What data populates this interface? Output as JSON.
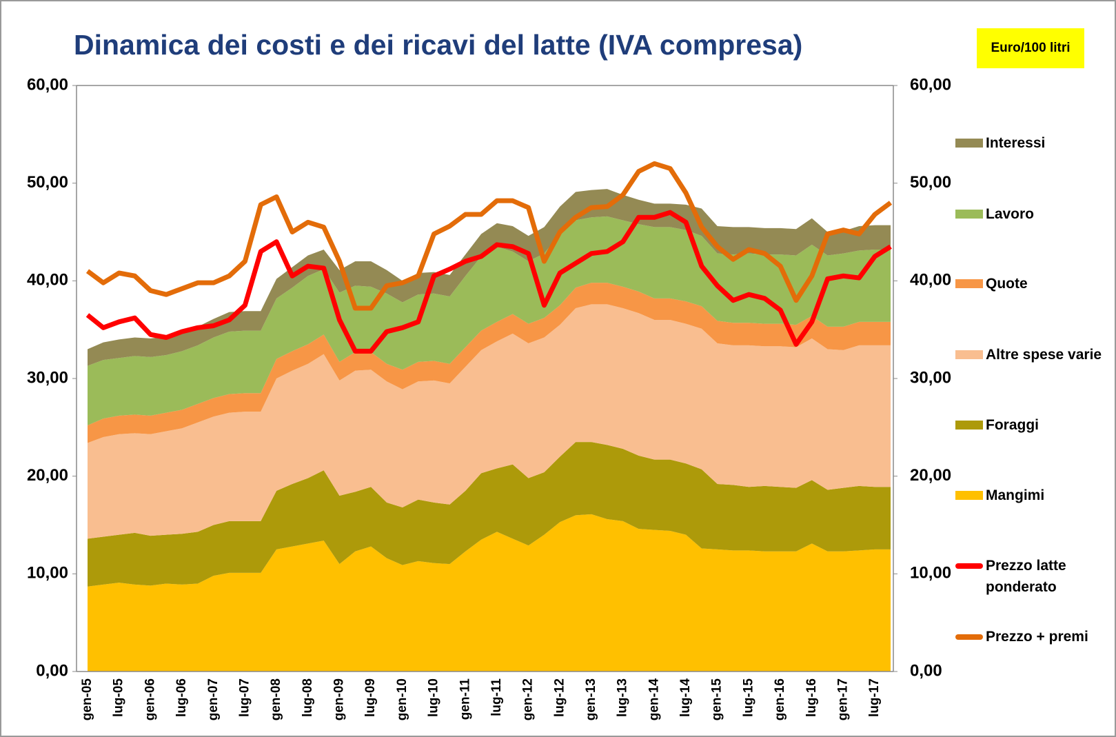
{
  "chart_data": {
    "type": "area",
    "title": "Dinamica dei costi e dei ricavi del latte (IVA compresa)",
    "unit_label": "Euro/100 litri",
    "categories": [
      "gen-05",
      null,
      "lug-05",
      null,
      "gen-06",
      null,
      "lug-06",
      null,
      "gen-07",
      null,
      "lug-07",
      null,
      "gen-08",
      null,
      "lug-08",
      null,
      "gen-09",
      null,
      "lug-09",
      null,
      "gen-10",
      null,
      "lug-10",
      null,
      "gen-11",
      null,
      "lug-11",
      null,
      "gen-12",
      null,
      "lug-12",
      null,
      "gen-13",
      null,
      "lug-13",
      null,
      "gen-14",
      null,
      "lug-14",
      null,
      "gen-15",
      null,
      "lug-15",
      null,
      "gen-16",
      null,
      "lug-16",
      null,
      "gen-17",
      null,
      "lug-17",
      null
    ],
    "ylim": [
      0,
      60
    ],
    "yticks": [
      {
        "value": 0,
        "label": "0,00"
      },
      {
        "value": 10,
        "label": "10,00"
      },
      {
        "value": 20,
        "label": "20,00"
      },
      {
        "value": 30,
        "label": "30,00"
      },
      {
        "value": 40,
        "label": "40,00"
      },
      {
        "value": 50,
        "label": "50,00"
      },
      {
        "value": 60,
        "label": "60,00"
      }
    ],
    "y2lim": [
      0,
      60
    ],
    "y2ticks": [
      {
        "value": 0,
        "label": "0,00"
      },
      {
        "value": 10,
        "label": "10,00"
      },
      {
        "value": 20,
        "label": "20,00"
      },
      {
        "value": 30,
        "label": "30,00"
      },
      {
        "value": 40,
        "label": "40,00"
      },
      {
        "value": 50,
        "label": "50,00"
      },
      {
        "value": 60,
        "label": "60,00"
      }
    ],
    "grid": false,
    "series": [
      {
        "name": "Mangimi",
        "type": "area",
        "color": "#ffc000",
        "values": [
          8.7,
          8.9,
          9.1,
          8.9,
          8.8,
          9.0,
          8.9,
          9.0,
          9.8,
          10.1,
          10.1,
          10.1,
          12.5,
          12.8,
          13.1,
          13.4,
          11.0,
          12.3,
          12.8,
          11.6,
          10.9,
          11.3,
          11.1,
          11.0,
          12.3,
          13.5,
          14.3,
          13.6,
          12.9,
          14.0,
          15.3,
          16.0,
          16.1,
          15.6,
          15.4,
          14.6,
          14.5,
          14.4,
          14.0,
          12.6,
          12.5,
          12.4,
          12.4,
          12.3,
          12.3,
          12.3,
          13.1,
          12.3,
          12.3,
          12.4,
          12.5,
          12.5
        ]
      },
      {
        "name": "Foraggi",
        "type": "area",
        "color": "#ad9a0a",
        "values": [
          4.9,
          4.9,
          4.9,
          5.3,
          5.1,
          5.0,
          5.2,
          5.3,
          5.2,
          5.3,
          5.3,
          5.3,
          6.0,
          6.4,
          6.7,
          7.2,
          7.0,
          6.1,
          6.1,
          5.7,
          5.9,
          6.3,
          6.2,
          6.1,
          6.2,
          6.8,
          6.5,
          7.6,
          6.9,
          6.4,
          6.7,
          7.5,
          7.4,
          7.6,
          7.4,
          7.5,
          7.2,
          7.3,
          7.3,
          8.1,
          6.7,
          6.7,
          6.5,
          6.7,
          6.6,
          6.5,
          6.5,
          6.3,
          6.5,
          6.6,
          6.4,
          6.4
        ]
      },
      {
        "name": "Altre spese varie",
        "type": "area",
        "color": "#f9be90",
        "values": [
          9.8,
          10.2,
          10.3,
          10.2,
          10.4,
          10.6,
          10.8,
          11.2,
          11.1,
          11.1,
          11.2,
          11.2,
          11.5,
          11.6,
          11.7,
          11.9,
          11.8,
          12.4,
          12.0,
          12.4,
          12.1,
          12.1,
          12.5,
          12.4,
          12.7,
          12.6,
          13.0,
          13.4,
          13.8,
          13.8,
          13.5,
          13.7,
          14.1,
          14.4,
          14.4,
          14.6,
          14.3,
          14.3,
          14.3,
          14.4,
          14.4,
          14.3,
          14.5,
          14.3,
          14.4,
          14.4,
          14.5,
          14.4,
          14.1,
          14.4,
          14.5,
          14.5
        ]
      },
      {
        "name": "Quote",
        "type": "area",
        "color": "#f79646",
        "values": [
          1.8,
          1.9,
          1.9,
          1.9,
          1.9,
          1.9,
          1.9,
          1.9,
          1.9,
          1.9,
          1.9,
          1.9,
          2.0,
          2.0,
          2.0,
          2.0,
          1.9,
          1.9,
          1.8,
          1.8,
          2.0,
          2.0,
          2.0,
          2.0,
          2.0,
          2.0,
          2.0,
          2.0,
          2.0,
          2.0,
          2.0,
          2.1,
          2.2,
          2.2,
          2.2,
          2.2,
          2.2,
          2.2,
          2.3,
          2.3,
          2.3,
          2.3,
          2.3,
          2.3,
          2.3,
          2.3,
          2.3,
          2.3,
          2.4,
          2.4,
          2.4,
          2.4
        ]
      },
      {
        "name": "Lavoro",
        "type": "area",
        "color": "#9bbb59",
        "values": [
          6.1,
          6.0,
          5.9,
          6.0,
          6.0,
          5.9,
          6.0,
          6.0,
          6.2,
          6.4,
          6.4,
          6.4,
          6.2,
          6.5,
          7.0,
          6.7,
          7.1,
          6.8,
          6.7,
          7.2,
          6.9,
          6.9,
          6.9,
          6.9,
          7.3,
          7.6,
          7.7,
          6.4,
          6.4,
          6.6,
          7.3,
          6.9,
          6.7,
          6.8,
          6.8,
          6.9,
          7.3,
          7.3,
          7.3,
          7.2,
          6.9,
          7.0,
          7.1,
          7.1,
          7.1,
          7.1,
          7.3,
          7.3,
          7.5,
          7.3,
          7.4,
          7.4
        ]
      },
      {
        "name": "Interessi",
        "type": "area",
        "color": "#948a54",
        "values": [
          1.7,
          1.8,
          1.9,
          1.9,
          1.9,
          1.9,
          1.9,
          1.9,
          1.9,
          2.0,
          2.0,
          2.0,
          2.0,
          2.1,
          2.1,
          2.0,
          2.3,
          2.5,
          2.6,
          2.4,
          2.2,
          2.2,
          2.2,
          2.2,
          2.2,
          2.3,
          2.4,
          2.6,
          2.6,
          2.7,
          2.8,
          2.9,
          2.8,
          2.8,
          2.6,
          2.5,
          2.4,
          2.4,
          2.6,
          2.8,
          2.8,
          2.8,
          2.7,
          2.7,
          2.7,
          2.7,
          2.7,
          2.4,
          2.3,
          2.5,
          2.5,
          2.5
        ]
      },
      {
        "name": "Prezzo latte ponderato",
        "type": "line",
        "color": "#ff0000",
        "values": [
          36.5,
          35.2,
          35.8,
          36.2,
          34.5,
          34.2,
          34.8,
          35.2,
          35.4,
          36.0,
          37.5,
          43.0,
          44.0,
          40.5,
          41.5,
          41.3,
          36.0,
          32.8,
          32.8,
          34.8,
          35.2,
          35.8,
          40.5,
          41.2,
          42.0,
          42.5,
          43.7,
          43.5,
          42.8,
          37.5,
          40.8,
          41.8,
          42.8,
          43.0,
          44.0,
          46.5,
          46.5,
          47.0,
          46.0,
          41.5,
          39.5,
          38.0,
          38.6,
          38.2,
          37.0,
          33.5,
          35.8,
          40.2,
          40.5,
          40.3,
          42.5,
          43.5
        ]
      },
      {
        "name": "Prezzo + premi",
        "type": "line",
        "color": "#e36c09",
        "values": [
          41.0,
          39.8,
          40.8,
          40.5,
          39.0,
          38.6,
          39.2,
          39.8,
          39.8,
          40.5,
          42.0,
          47.8,
          48.6,
          45.0,
          46.0,
          45.5,
          42.0,
          37.2,
          37.2,
          39.5,
          39.8,
          40.5,
          44.8,
          45.6,
          46.8,
          46.8,
          48.2,
          48.2,
          47.5,
          42.0,
          45.0,
          46.5,
          47.5,
          47.6,
          48.8,
          51.2,
          52.0,
          51.5,
          49.0,
          45.5,
          43.5,
          42.2,
          43.2,
          42.8,
          41.5,
          38.0,
          40.5,
          44.8,
          45.2,
          44.8,
          46.8,
          48.0
        ]
      }
    ]
  }
}
